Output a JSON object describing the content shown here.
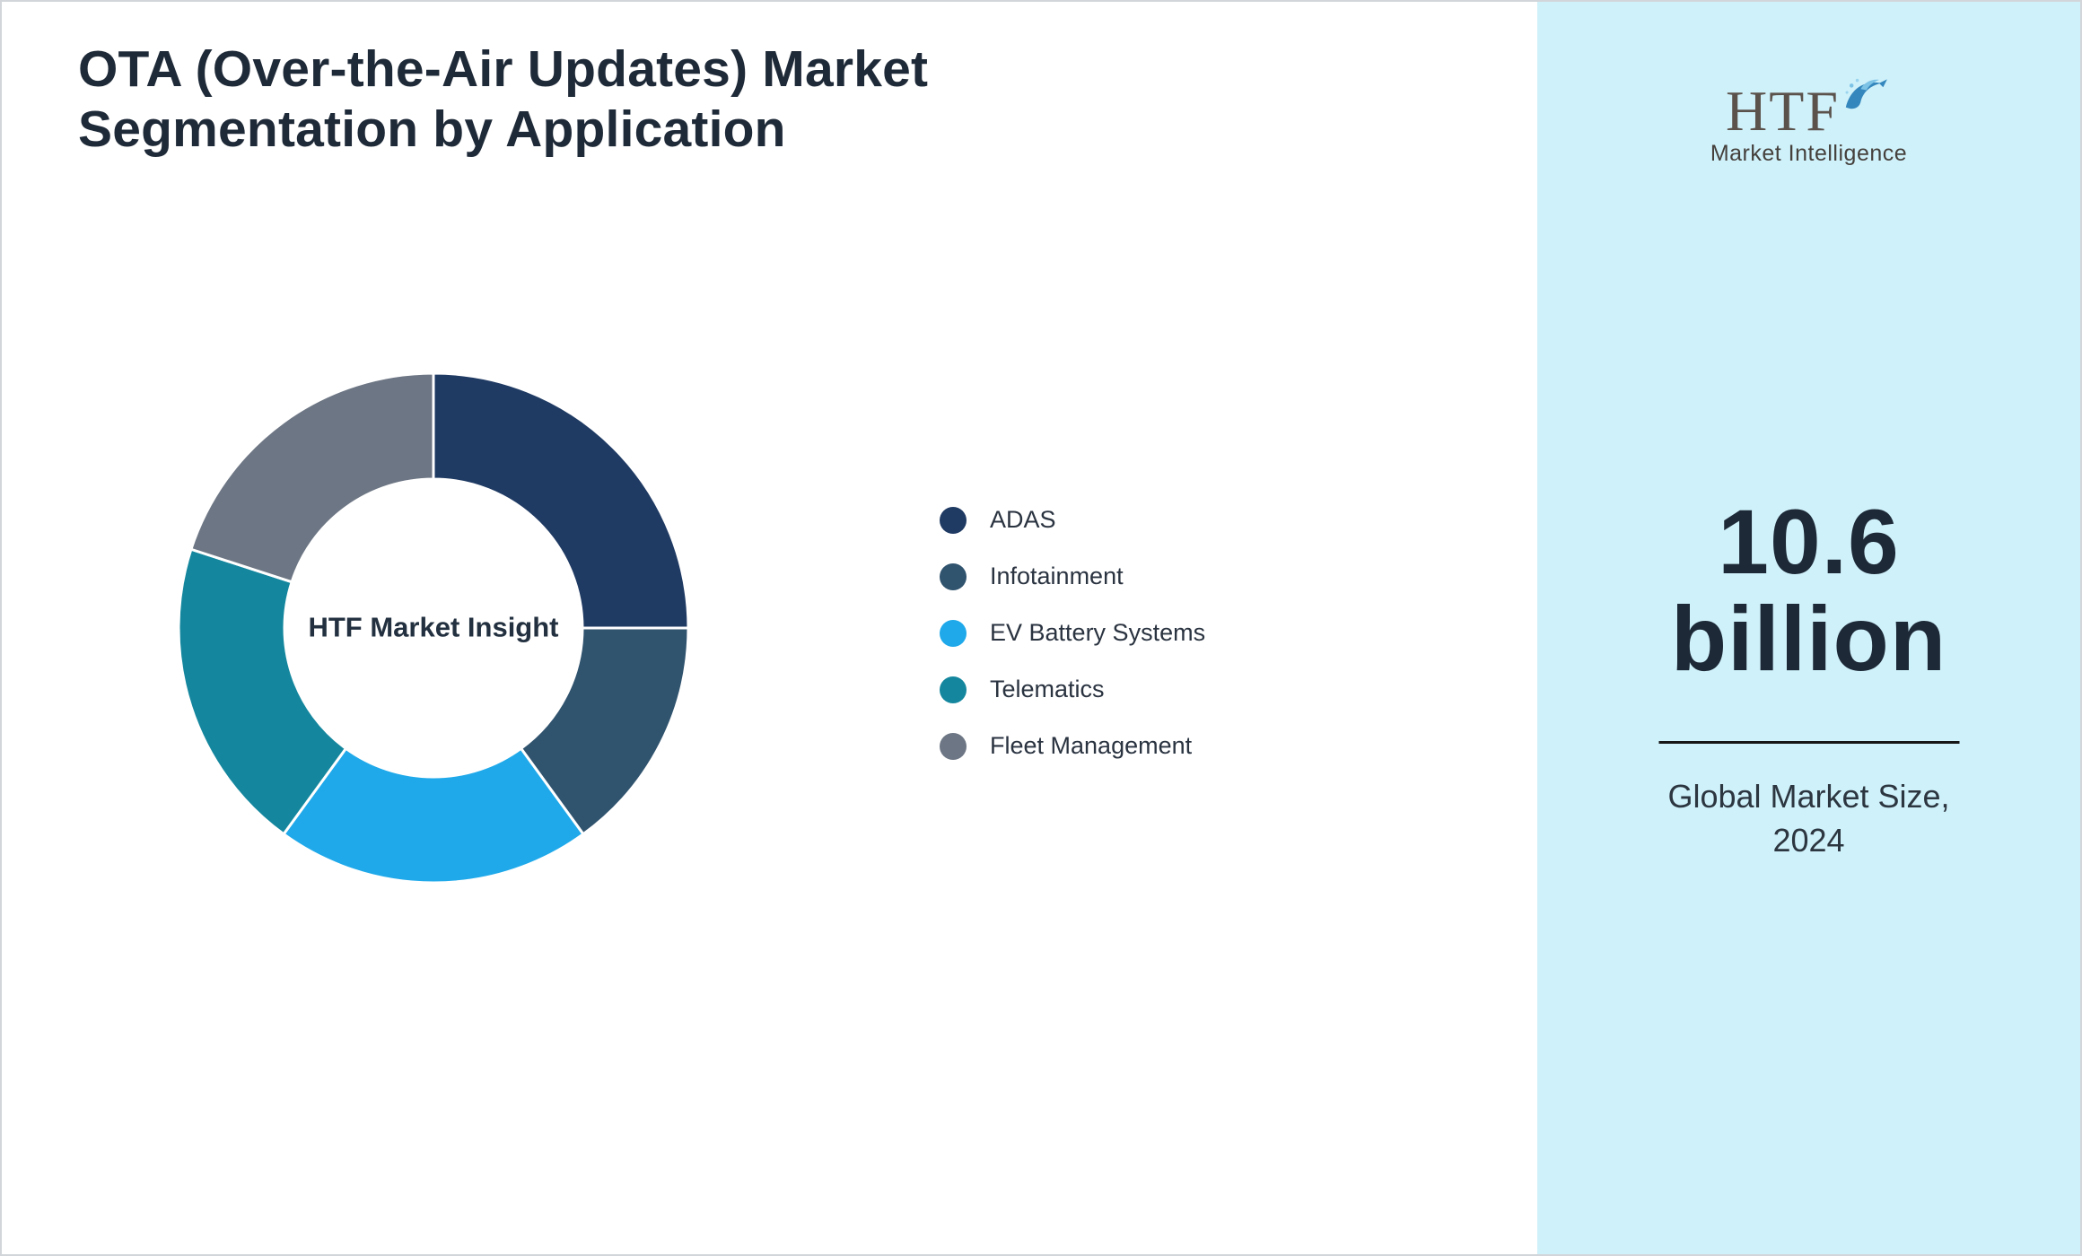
{
  "header": {
    "title_line1": "OTA (Over-the-Air Updates) Market",
    "title_line2": "Segmentation by Application"
  },
  "chart_data": {
    "type": "pie",
    "variant": "donut",
    "title": "OTA (Over-the-Air Updates) Market Segmentation by Application",
    "center_label": "HTF Market Insight",
    "categories": [
      "ADAS",
      "Infotainment",
      "EV Battery Systems",
      "Telematics",
      "Fleet Management"
    ],
    "values": [
      25,
      15,
      20,
      20,
      20
    ],
    "values_are_estimates": true,
    "colors": [
      "#1f3a63",
      "#30536e",
      "#1fa9ea",
      "#14879e",
      "#6d7684"
    ],
    "legend_position": "right",
    "start_angle_deg": 0,
    "direction": "clockwise"
  },
  "sidebar": {
    "background_color": "#cff1fa",
    "logo_text": "HTF",
    "logo_subtitle": "Market Intelligence",
    "market_size_line1": "10.6",
    "market_size_line2": "billion",
    "caption_line1": "Global Market Size,",
    "caption_line2": "2024"
  }
}
